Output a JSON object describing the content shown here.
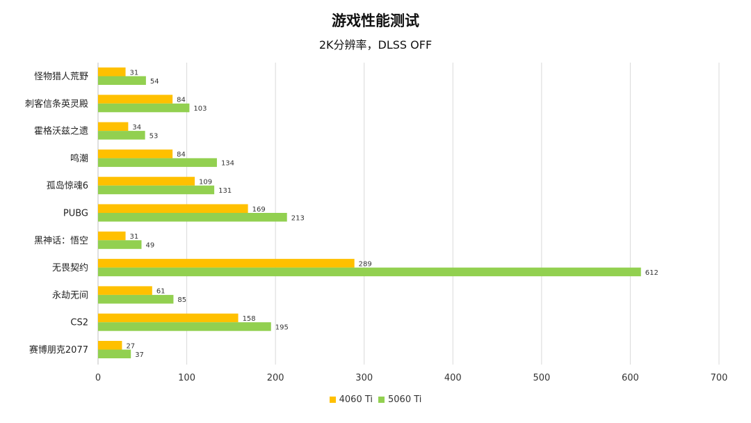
{
  "chart_data": {
    "type": "bar",
    "orientation": "horizontal",
    "title": "游戏性能测试",
    "subtitle": "2K分辨率，DLSS OFF",
    "categories": [
      "怪物猎人荒野",
      "刺客信条英灵殿",
      "霍格沃兹之遗",
      "鸣潮",
      "孤岛惊魂6",
      "PUBG",
      "黑神话：悟空",
      "无畏契约",
      "永劫无间",
      "CS2",
      "赛博朋克2077"
    ],
    "series": [
      {
        "name": "4060 Ti",
        "color": "#ffc000",
        "values": [
          31,
          84,
          34,
          84,
          109,
          169,
          31,
          289,
          61,
          158,
          27
        ]
      },
      {
        "name": "5060 Ti",
        "color": "#92d050",
        "values": [
          54,
          103,
          53,
          134,
          131,
          213,
          49,
          612,
          85,
          195,
          37
        ]
      }
    ],
    "xlim": [
      0,
      700
    ],
    "xticks": [
      0,
      100,
      200,
      300,
      400,
      500,
      600,
      700
    ],
    "grid": true,
    "legend_position": "bottom"
  }
}
